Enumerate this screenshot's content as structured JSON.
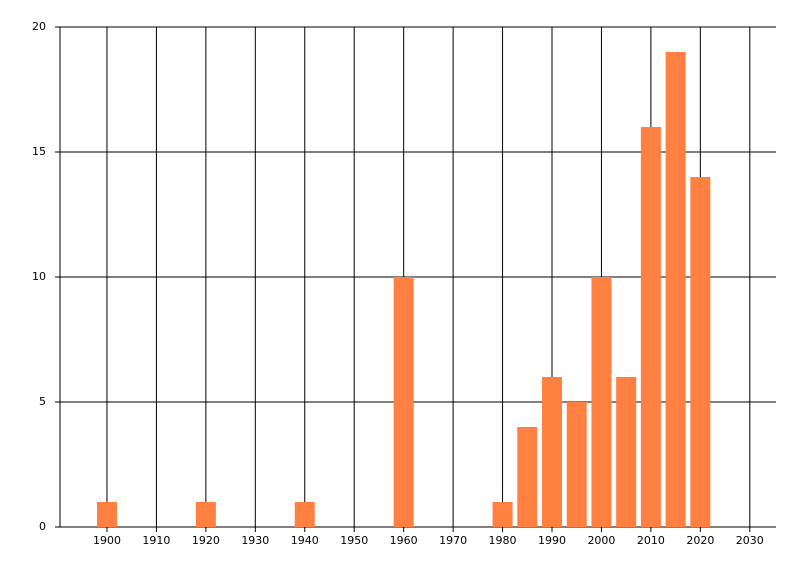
{
  "chart_data": {
    "type": "bar",
    "x": [
      1900,
      1920,
      1940,
      1960,
      1980,
      1985,
      1990,
      1995,
      2000,
      2005,
      2010,
      2015,
      2020
    ],
    "values": [
      1,
      1,
      1,
      10,
      1,
      4,
      6,
      5,
      10,
      6,
      16,
      19,
      14
    ],
    "color": "#ff8040",
    "xlim": [
      1890.5,
      2035.3
    ],
    "xticks": [
      1900,
      1910,
      1920,
      1930,
      1940,
      1950,
      1960,
      1970,
      1980,
      1990,
      2000,
      2010,
      2020,
      2030
    ],
    "ylim": [
      0,
      20
    ],
    "yticks": [
      0,
      5,
      10,
      15,
      20
    ],
    "grid": true
  }
}
